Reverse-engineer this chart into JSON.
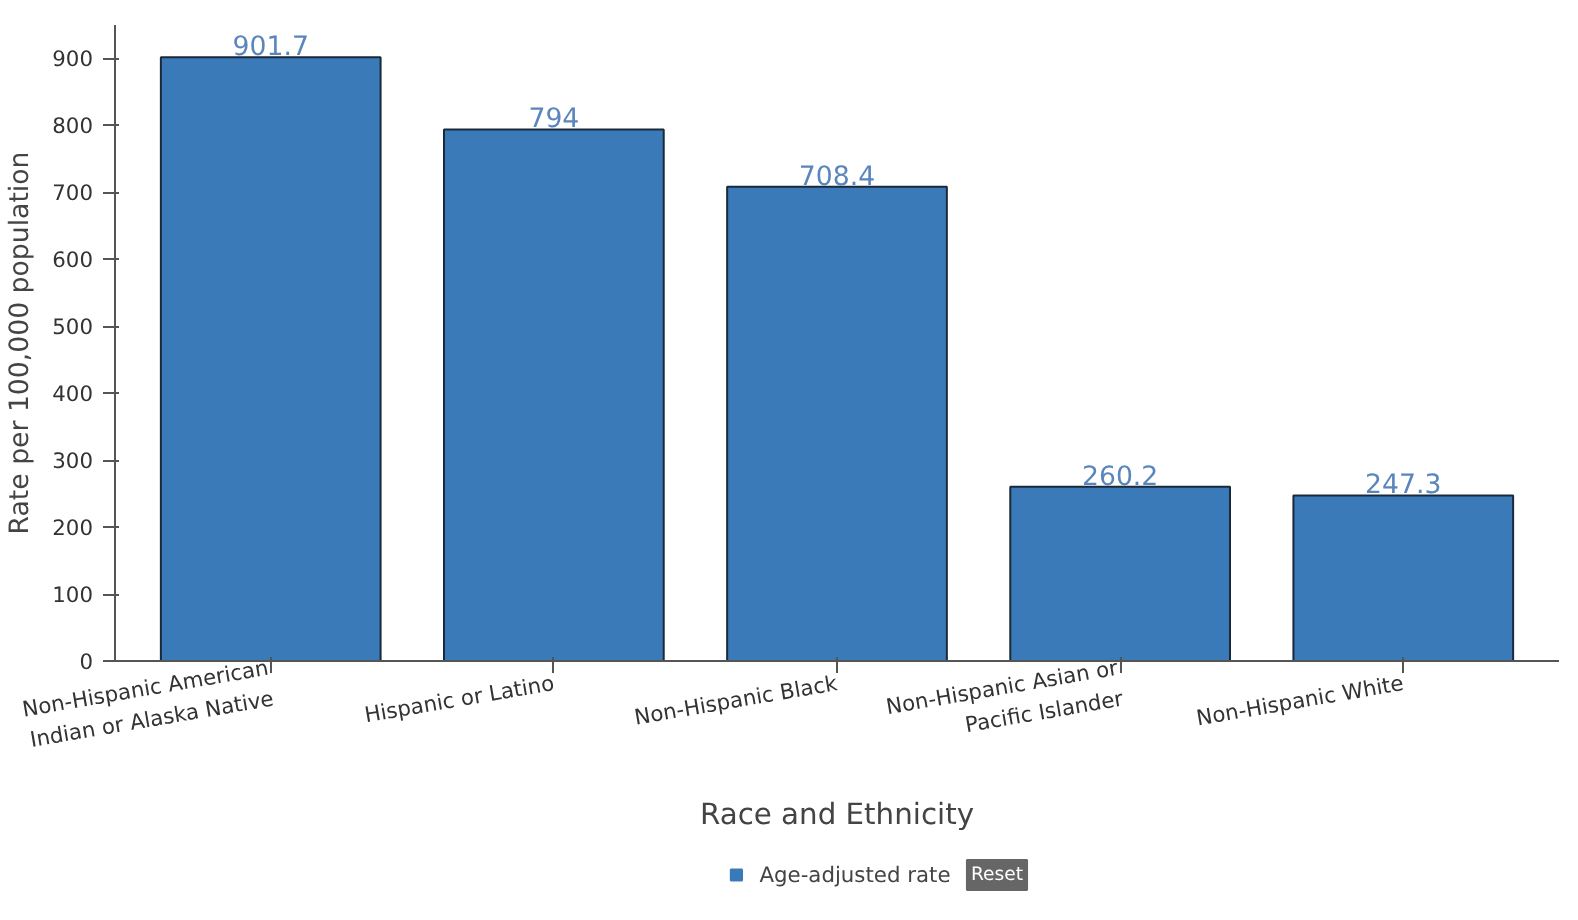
{
  "chart_data": {
    "type": "bar",
    "xlabel": "Race and Ethnicity",
    "ylabel": "Rate per 100,000 population",
    "categories": [
      "Non-Hispanic American Indian or Alaska Native",
      "Hispanic or Latino",
      "Non-Hispanic Black",
      "Non-Hispanic Asian or Pacific Islander",
      "Non-Hispanic White"
    ],
    "series": [
      {
        "name": "Age-adjusted rate",
        "color": "#3a7ab8",
        "values": [
          901.7,
          794,
          708.4,
          260.2,
          247.3
        ]
      }
    ],
    "ylim": [
      0,
      950
    ],
    "yticks": [
      0,
      100,
      200,
      300,
      400,
      500,
      600,
      700,
      800,
      900
    ],
    "data_labels": true,
    "grid": false,
    "legend": "bottom",
    "annotations": [
      "Reset"
    ]
  }
}
